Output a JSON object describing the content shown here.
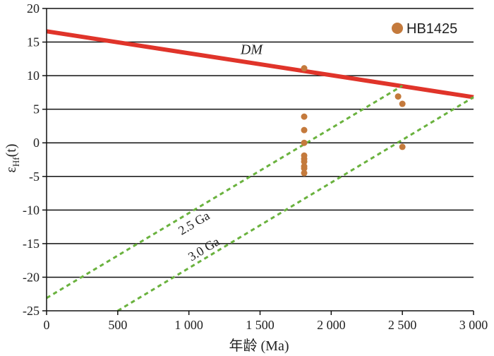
{
  "chart_data": {
    "type": "scatter",
    "xlabel": "年龄 (Ma)",
    "ylabel_main": "ε",
    "ylabel_sub": "Hf",
    "ylabel_tail": "(t)",
    "xlim": [
      0,
      3000
    ],
    "ylim": [
      -25,
      20
    ],
    "x_ticks": [
      0,
      500,
      1000,
      1500,
      2000,
      2500,
      3000
    ],
    "x_tick_labels": [
      "0",
      "500",
      "1 000",
      "1 500",
      "2 000",
      "2 500",
      "3 000"
    ],
    "y_ticks": [
      -25,
      -20,
      -15,
      -10,
      -5,
      0,
      5,
      10,
      15,
      20
    ],
    "y_tick_labels": [
      "-25",
      "-20",
      "-15",
      "-10",
      "-5",
      "0",
      "5",
      "10",
      "15",
      "20"
    ],
    "grid": "horizontal",
    "series": [
      {
        "name": "HB1425",
        "color": "#c47a3c",
        "points": [
          [
            1810,
            11.1
          ],
          [
            1810,
            3.9
          ],
          [
            1810,
            1.9
          ],
          [
            1810,
            0.0
          ],
          [
            1810,
            -1.9
          ],
          [
            1810,
            -2.4
          ],
          [
            1810,
            -2.8
          ],
          [
            1810,
            -3.5
          ],
          [
            1810,
            -3.8
          ],
          [
            1810,
            -4.5
          ],
          [
            2470,
            6.9
          ],
          [
            2500,
            5.8
          ],
          [
            2500,
            -0.6
          ]
        ]
      }
    ],
    "reference_lines": [
      {
        "label": "DM",
        "color": "#e0342a",
        "from": [
          0,
          16.6
        ],
        "to": [
          3000,
          6.8
        ],
        "style": "solid"
      },
      {
        "label": "2.5 Ga",
        "color": "#6ab23e",
        "from": [
          0,
          -23.1
        ],
        "to": [
          2500,
          8.5
        ],
        "style": "dashed"
      },
      {
        "label": "3.0 Ga",
        "color": "#6ab23e",
        "from": [
          500,
          -25.0
        ],
        "to": [
          3000,
          6.8
        ],
        "style": "dashed"
      }
    ],
    "legend": {
      "position": "top-right",
      "label": "HB1425"
    }
  }
}
